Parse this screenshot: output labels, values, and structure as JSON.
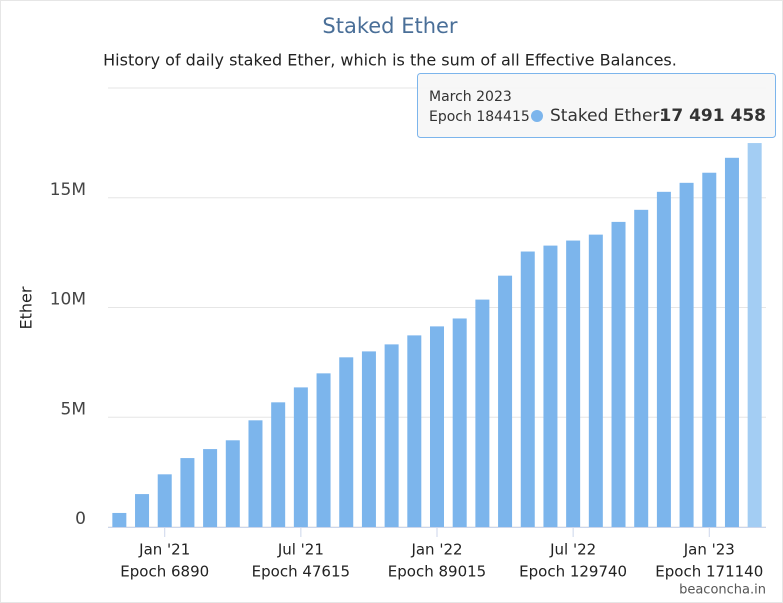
{
  "chart_data": {
    "type": "bar",
    "title": "Staked Ether",
    "subtitle": "History of daily staked Ether, which is the sum of all Effective Balances.",
    "y_label": "Ether",
    "categories": [
      null,
      null,
      "Jan '21",
      null,
      null,
      null,
      null,
      null,
      "Jul '21",
      null,
      null,
      null,
      null,
      null,
      "Jan '22",
      null,
      null,
      null,
      null,
      null,
      "Jul '22",
      null,
      null,
      null,
      null,
      null,
      "Jan '23",
      null,
      null
    ],
    "category_epochs": [
      null,
      null,
      "Epoch 6890",
      null,
      null,
      null,
      null,
      null,
      "Epoch 47615",
      null,
      null,
      null,
      null,
      null,
      "Epoch 89015",
      null,
      null,
      null,
      null,
      null,
      "Epoch 129740",
      null,
      null,
      null,
      null,
      null,
      "Epoch 171140",
      null,
      null
    ],
    "values": [
      640000,
      1500000,
      2400000,
      3140000,
      3550000,
      3950000,
      4860000,
      5680000,
      6360000,
      7000000,
      7730000,
      8000000,
      8320000,
      8730000,
      9140000,
      9500000,
      10360000,
      11450000,
      12550000,
      12820000,
      13050000,
      13320000,
      13900000,
      14450000,
      15270000,
      15680000,
      16140000,
      16820000,
      17491458
    ],
    "color": "#7cb5ec",
    "hover_color": "#a3cdf3",
    "ylim": [
      0,
      20000000
    ],
    "yticks": [
      0,
      {
        "value": 5000000,
        "label": "5M"
      },
      {
        "value": 10000000,
        "label": "10M"
      },
      {
        "value": 15000000,
        "label": "15M"
      },
      {
        "value": 20000000,
        "label": ""
      }
    ],
    "grid": true,
    "tooltip": {
      "title": "March 2023",
      "epoch": "Epoch 184415",
      "series_label": "Staked Ether:",
      "value_label": "17 491 458"
    },
    "credits": "beaconcha.in"
  }
}
